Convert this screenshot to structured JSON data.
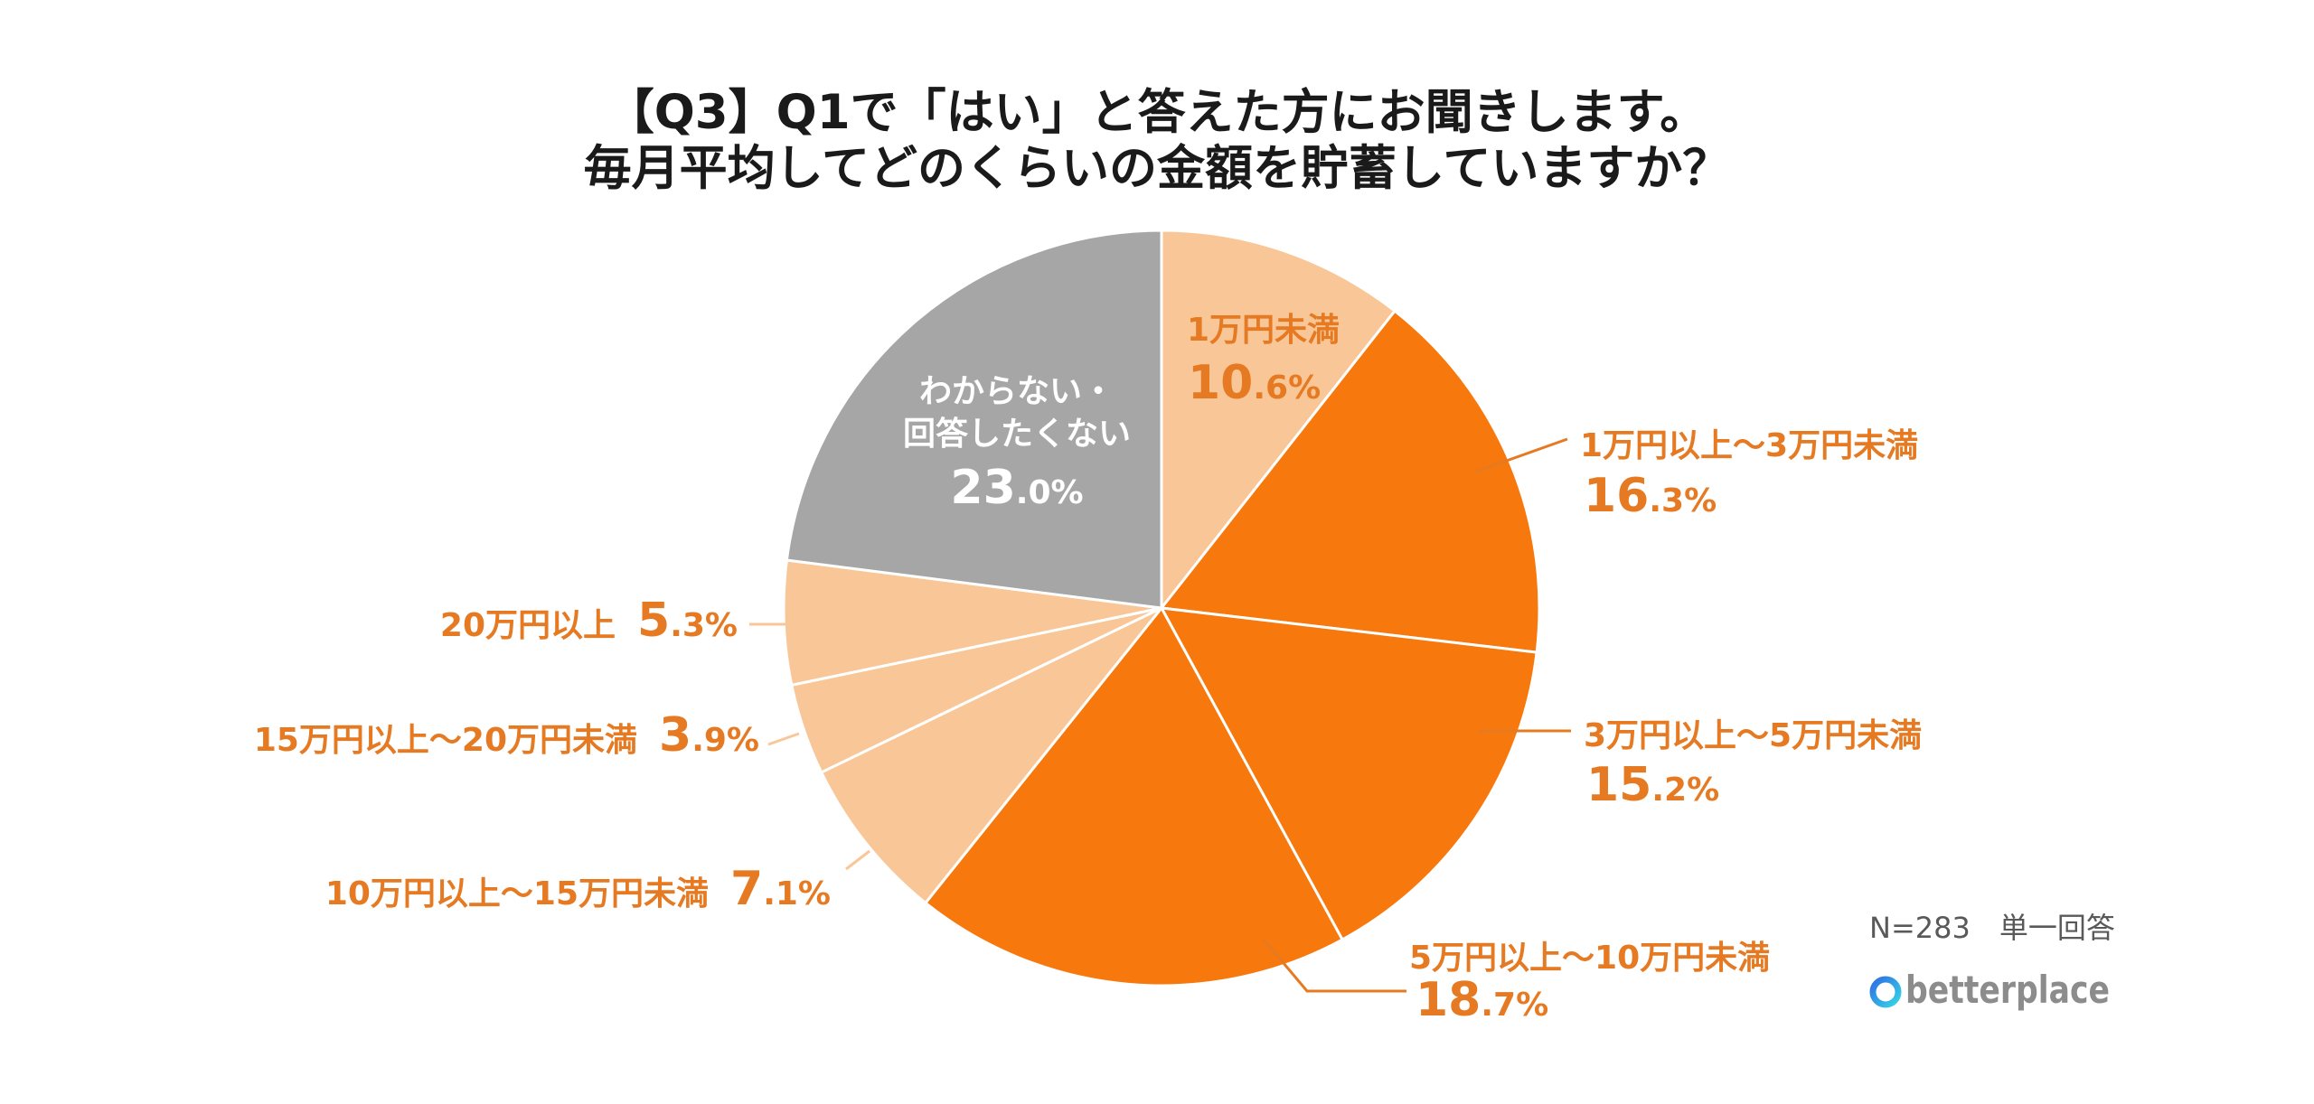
{
  "chart_data": {
    "type": "pie",
    "title_lines": [
      "【Q3】Q1で「はい」と答えた方にお聞きします。",
      "毎月平均してどのくらいの金額を貯蓄していますか？"
    ],
    "unit": "%",
    "slices": [
      {
        "label_lines": [
          "1万円未満"
        ],
        "value": 10.6,
        "color": "#F9C797",
        "label_color": "#E67A22"
      },
      {
        "label_lines": [
          "1万円以上～3万円未満"
        ],
        "value": 16.3,
        "color": "#F7780C",
        "label_color": "#E67A22"
      },
      {
        "label_lines": [
          "3万円以上～5万円未満"
        ],
        "value": 15.2,
        "color": "#F7780C",
        "label_color": "#E67A22"
      },
      {
        "label_lines": [
          "5万円以上～10万円未満"
        ],
        "value": 18.7,
        "color": "#F7780C",
        "label_color": "#E67A22"
      },
      {
        "label_lines": [
          "10万円以上～15万円未満"
        ],
        "value": 7.1,
        "color": "#F9C797",
        "label_color": "#E67A22"
      },
      {
        "label_lines": [
          "15万円以上～20万円未満"
        ],
        "value": 3.9,
        "color": "#F9C797",
        "label_color": "#E67A22"
      },
      {
        "label_lines": [
          "20万円以上"
        ],
        "value": 5.3,
        "color": "#F9C797",
        "label_color": "#E67A22"
      },
      {
        "label_lines": [
          "わからない・",
          "回答したくない"
        ],
        "value": 23.0,
        "color": "#A6A6A6",
        "label_color": "#FFFFFF"
      }
    ]
  },
  "footnote": "N=283　単一回答",
  "logo": {
    "text": "betterplace",
    "icon": "betterplace-b-icon",
    "icon_colors": [
      "#2F6FE4",
      "#35D4E6"
    ]
  }
}
